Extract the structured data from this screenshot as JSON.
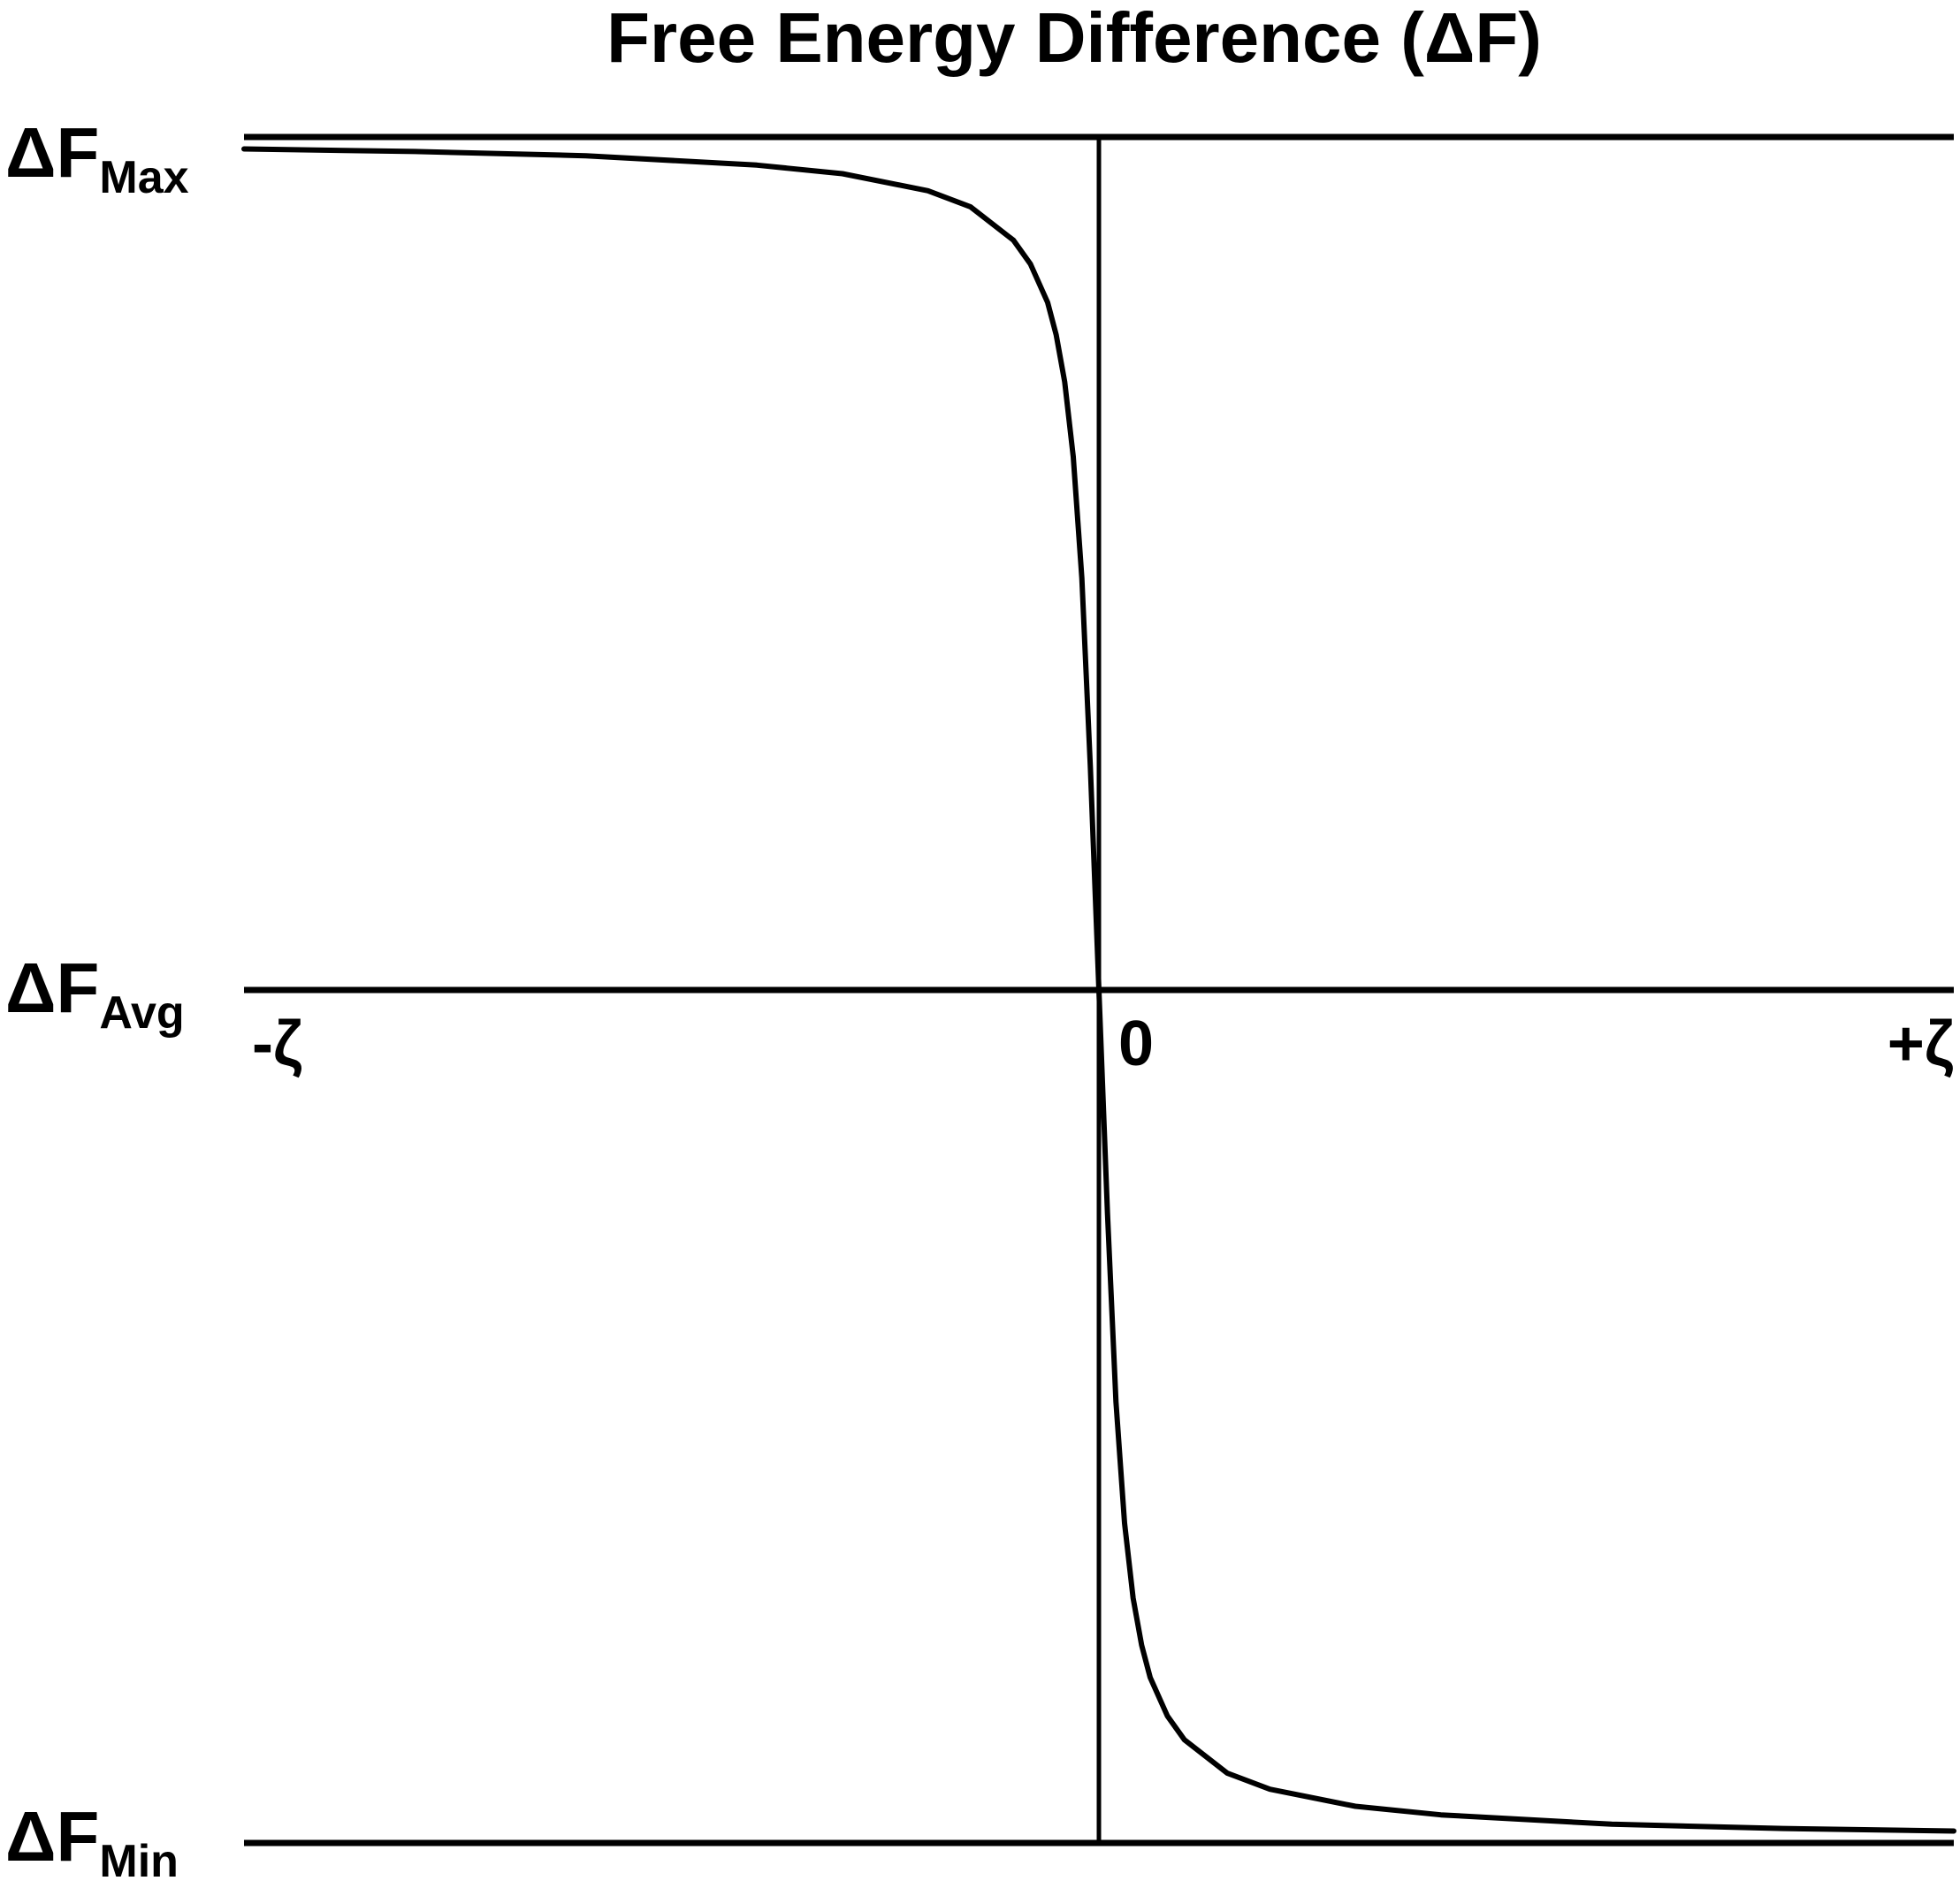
{
  "chart_data": {
    "type": "line",
    "title": "Free Energy Difference (ΔF)",
    "xlabel": "",
    "ylabel": "",
    "x_tick_labels": [
      "-ζ",
      "0",
      "+ζ"
    ],
    "y_levels": [
      {
        "key": "max",
        "base": "ΔF",
        "sub": "Max"
      },
      {
        "key": "avg",
        "base": "ΔF",
        "sub": "Avg"
      },
      {
        "key": "min",
        "base": "ΔF",
        "sub": "Min"
      }
    ],
    "xlim": [
      -1,
      1
    ],
    "ylim": [
      -1,
      1
    ],
    "grid": false,
    "legend": "none",
    "reference_lines": [
      {
        "axis": "y",
        "value": 1
      },
      {
        "axis": "y",
        "value": 0
      },
      {
        "axis": "y",
        "value": -1
      },
      {
        "axis": "x",
        "value": 0
      }
    ],
    "series": [
      {
        "color": "#000000",
        "x": [
          -1.0,
          -0.8,
          -0.6,
          -0.4,
          -0.3,
          -0.2,
          -0.15,
          -0.1,
          -0.08,
          -0.06,
          -0.05,
          -0.04,
          -0.03,
          -0.02,
          -0.01,
          0.0,
          0.01,
          0.02,
          0.03,
          0.04,
          0.05,
          0.06,
          0.08,
          0.1,
          0.15,
          0.2,
          0.3,
          0.4,
          0.6,
          0.8,
          1.0
        ],
        "y": [
          0.986,
          0.983,
          0.978,
          0.967,
          0.957,
          0.937,
          0.918,
          0.879,
          0.851,
          0.806,
          0.768,
          0.713,
          0.625,
          0.483,
          0.262,
          0.0,
          -0.262,
          -0.483,
          -0.625,
          -0.713,
          -0.768,
          -0.806,
          -0.851,
          -0.879,
          -0.918,
          -0.937,
          -0.957,
          -0.967,
          -0.978,
          -0.983,
          -0.986
        ]
      }
    ]
  }
}
